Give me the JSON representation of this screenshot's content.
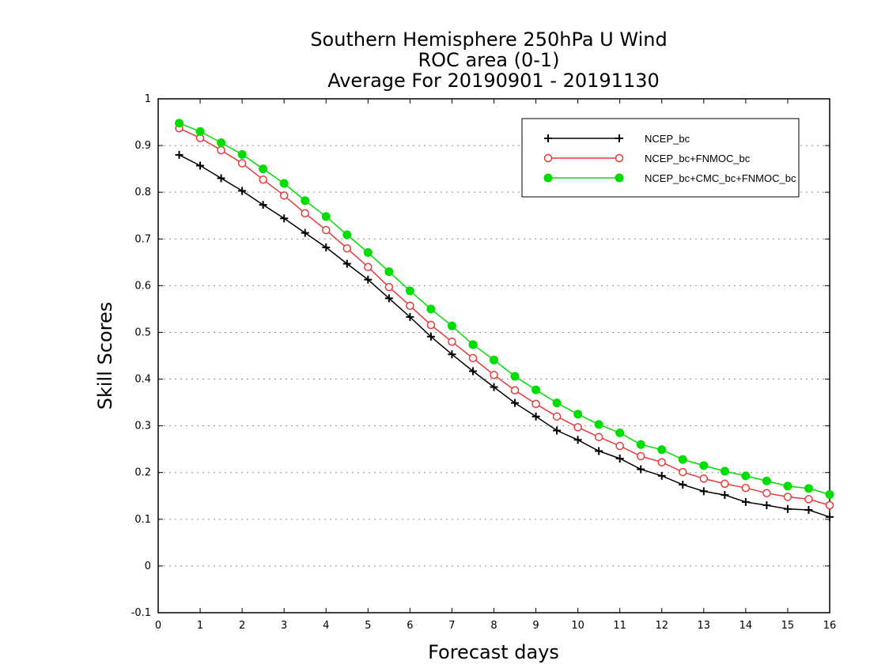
{
  "chart_data": {
    "type": "line",
    "title": [
      "Southern Hemisphere 250hPa U Wind",
      "ROC area (0-1)",
      "Average For 20190901 - 20191130"
    ],
    "xlabel": "Forecast days",
    "ylabel": "Skill Scores",
    "xlim": [
      0,
      16
    ],
    "ylim": [
      -0.1,
      1
    ],
    "xticks": [
      0,
      1,
      2,
      3,
      4,
      5,
      6,
      7,
      8,
      9,
      10,
      11,
      12,
      13,
      14,
      15,
      16
    ],
    "xtick_labels": [
      "0",
      "1",
      "2",
      "3",
      "4",
      "5",
      "6",
      "7",
      "8",
      "9",
      "10",
      "11",
      "12",
      "13",
      "14",
      "15",
      "16"
    ],
    "yticks": [
      -0.1,
      0,
      0.1,
      0.2,
      0.3,
      0.4,
      0.5,
      0.6,
      0.7,
      0.8,
      0.9,
      1
    ],
    "ytick_labels": [
      "-0.1",
      "0",
      "0.1",
      "0.2",
      "0.3",
      "0.4",
      "0.5",
      "0.6",
      "0.7",
      "0.8",
      "0.9",
      "1"
    ],
    "grid": "horizontal dotted",
    "legend_position": "top-right",
    "x": [
      0.5,
      1,
      1.5,
      2,
      2.5,
      3,
      3.5,
      4,
      4.5,
      5,
      5.5,
      6,
      6.5,
      7,
      7.5,
      8,
      8.5,
      9,
      9.5,
      10,
      10.5,
      11,
      11.5,
      12,
      12.5,
      13,
      13.5,
      14,
      14.5,
      15,
      15.5,
      16
    ],
    "series": [
      {
        "name": "NCEP_bc",
        "color": "#000000",
        "marker": "plus",
        "values": [
          0.88,
          0.857,
          0.83,
          0.803,
          0.773,
          0.744,
          0.713,
          0.682,
          0.647,
          0.613,
          0.573,
          0.533,
          0.491,
          0.453,
          0.417,
          0.383,
          0.349,
          0.32,
          0.29,
          0.27,
          0.246,
          0.23,
          0.207,
          0.193,
          0.174,
          0.16,
          0.152,
          0.137,
          0.13,
          0.122,
          0.12,
          0.105
        ]
      },
      {
        "name": "NCEP_bc+FNMOC_bc",
        "color": "#e83a3a",
        "marker": "open-circle",
        "values": [
          0.937,
          0.916,
          0.89,
          0.862,
          0.827,
          0.793,
          0.755,
          0.719,
          0.68,
          0.64,
          0.597,
          0.557,
          0.516,
          0.48,
          0.445,
          0.409,
          0.376,
          0.347,
          0.32,
          0.297,
          0.276,
          0.257,
          0.235,
          0.222,
          0.201,
          0.187,
          0.176,
          0.167,
          0.156,
          0.148,
          0.143,
          0.13
        ]
      },
      {
        "name": "NCEP_bc+CMC_bc+FNMOC_bc",
        "color": "#00dd00",
        "marker": "filled-circle",
        "values": [
          0.948,
          0.93,
          0.906,
          0.881,
          0.85,
          0.819,
          0.782,
          0.748,
          0.709,
          0.671,
          0.63,
          0.589,
          0.55,
          0.514,
          0.474,
          0.441,
          0.406,
          0.377,
          0.349,
          0.325,
          0.303,
          0.285,
          0.26,
          0.249,
          0.228,
          0.215,
          0.203,
          0.193,
          0.182,
          0.171,
          0.166,
          0.153
        ]
      }
    ]
  }
}
